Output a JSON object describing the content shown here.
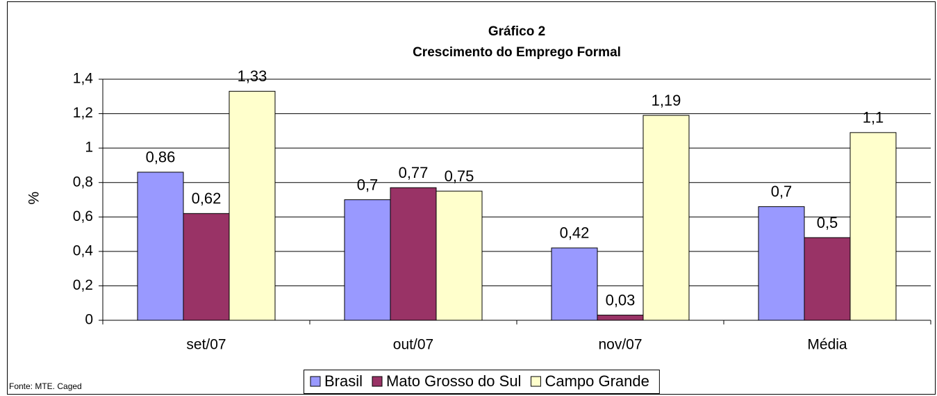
{
  "chart_data": {
    "type": "bar",
    "title": "Gráfico 2",
    "subtitle": "Crescimento do Emprego Formal",
    "y_label": "%",
    "source": "Fonte: MTE. Caged",
    "categories": [
      "set/07",
      "out/07",
      "nov/07",
      "Média"
    ],
    "series": [
      {
        "name": "Brasil",
        "color": "#9999ff",
        "values": [
          0.86,
          0.7,
          0.42,
          0.66
        ],
        "value_labels": [
          "0,86",
          "0,7",
          "0,42",
          "0,7"
        ]
      },
      {
        "name": "Mato Grosso do Sul",
        "color": "#993366",
        "values": [
          0.62,
          0.77,
          0.03,
          0.48
        ],
        "value_labels": [
          "0,62",
          "0,77",
          "0,03",
          "0,5"
        ]
      },
      {
        "name": "Campo Grande",
        "color": "#ffffcc",
        "values": [
          1.33,
          0.75,
          1.19,
          1.09
        ],
        "value_labels": [
          "1,33",
          "0,75",
          "1,19",
          "1,1"
        ]
      }
    ],
    "ylim": [
      0,
      1.4
    ],
    "yticks": [
      0,
      {
        "value": 0.2,
        "label": "0,2"
      },
      {
        "value": 0.4,
        "label": "0,4"
      },
      {
        "value": 0.6,
        "label": "0,6"
      },
      {
        "value": 0.8,
        "label": "0,8"
      },
      1,
      {
        "value": 1.2,
        "label": "1,2"
      },
      {
        "value": 1.4,
        "label": "1,4"
      }
    ],
    "grid": true,
    "legend": "bottom"
  }
}
